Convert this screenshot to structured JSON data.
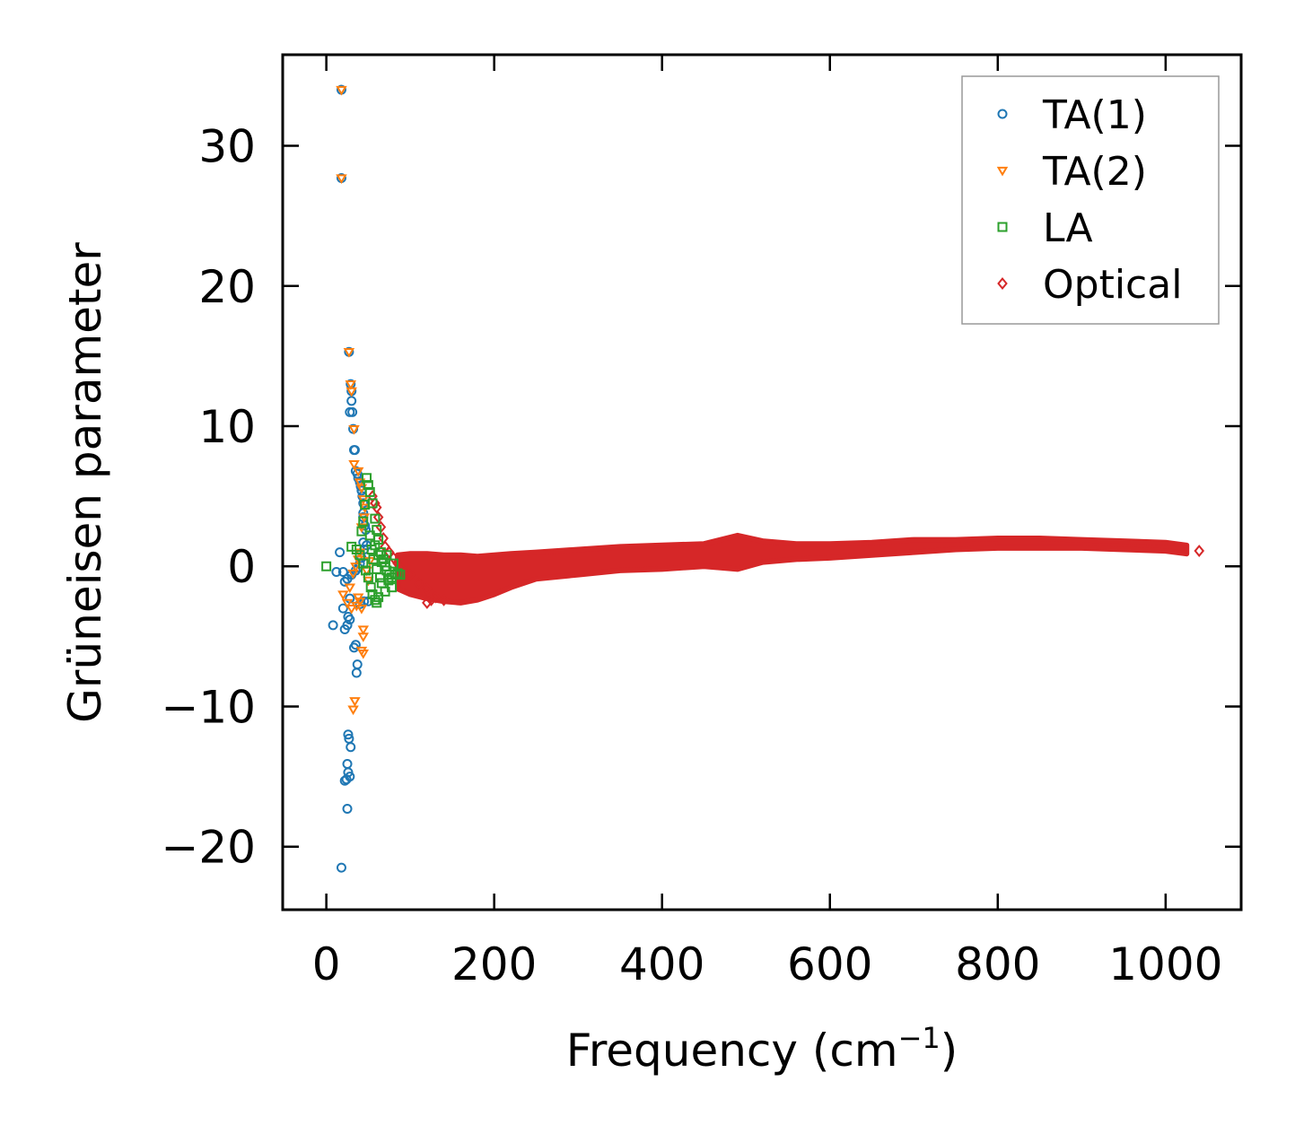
{
  "chart_data": {
    "type": "scatter",
    "title": "",
    "xlabel": "Frequency (cm",
    "xlabel_sup": "−1",
    "xlabel_suffix": ")",
    "ylabel": "Grüneisen parameter",
    "xlim": [
      -52,
      1090
    ],
    "ylim": [
      -24.5,
      36.5
    ],
    "xticks": [
      0,
      200,
      400,
      600,
      800,
      1000
    ],
    "yticks": [
      -20,
      -10,
      0,
      10,
      20,
      30
    ],
    "xtick_labels": [
      "0",
      "200",
      "400",
      "600",
      "800",
      "1000"
    ],
    "ytick_labels": [
      "−20",
      "−10",
      "0",
      "10",
      "20",
      "30"
    ],
    "legend_position": "top-right",
    "series": [
      {
        "name": "TA(1)",
        "marker": "circle",
        "color": "#1f77b4",
        "points": [
          [
            18,
            34.0
          ],
          [
            18,
            27.7
          ],
          [
            27,
            15.3
          ],
          [
            29,
            13.0
          ],
          [
            30,
            12.5
          ],
          [
            30,
            11.8
          ],
          [
            28,
            11.0
          ],
          [
            31,
            11.0
          ],
          [
            32,
            9.8
          ],
          [
            33,
            8.3
          ],
          [
            34,
            8.3
          ],
          [
            35,
            6.8
          ],
          [
            37,
            6.6
          ],
          [
            38,
            6.3
          ],
          [
            40,
            6.0
          ],
          [
            41,
            5.7
          ],
          [
            42,
            5.4
          ],
          [
            44,
            3.8
          ],
          [
            44,
            3.5
          ],
          [
            46,
            2.9
          ],
          [
            47,
            2.6
          ],
          [
            44,
            1.7
          ],
          [
            48,
            1.5
          ],
          [
            45,
            1.2
          ],
          [
            16,
            1.0
          ],
          [
            42,
            0.6
          ],
          [
            40,
            0.2
          ],
          [
            38,
            -0.1
          ],
          [
            35,
            -0.3
          ],
          [
            12,
            -0.4
          ],
          [
            20,
            -0.4
          ],
          [
            30,
            -0.6
          ],
          [
            25,
            -0.9
          ],
          [
            22,
            -1.1
          ],
          [
            45,
            -2.5
          ],
          [
            40,
            -2.7
          ],
          [
            28,
            -2.3
          ],
          [
            20,
            -3.0
          ],
          [
            26,
            -3.6
          ],
          [
            28,
            -3.8
          ],
          [
            25,
            -4.2
          ],
          [
            22,
            -4.5
          ],
          [
            8,
            -4.2
          ],
          [
            35,
            -5.6
          ],
          [
            33,
            -5.8
          ],
          [
            37,
            -7.0
          ],
          [
            36,
            -7.6
          ],
          [
            26,
            -12.0
          ],
          [
            27,
            -12.3
          ],
          [
            29,
            -12.9
          ],
          [
            25,
            -14.1
          ],
          [
            26,
            -14.7
          ],
          [
            28,
            -15.0
          ],
          [
            24,
            -15.2
          ],
          [
            22,
            -15.3
          ],
          [
            25,
            -17.3
          ],
          [
            18,
            -21.5
          ],
          [
            50,
            -2.5
          ],
          [
            44,
            4.5
          ],
          [
            43,
            5.0
          ]
        ]
      },
      {
        "name": "TA(2)",
        "marker": "triangle-down",
        "color": "#ff7f0e",
        "points": [
          [
            18,
            34.0
          ],
          [
            18,
            27.7
          ],
          [
            27,
            15.3
          ],
          [
            29,
            13.0
          ],
          [
            30,
            12.5
          ],
          [
            33,
            9.8
          ],
          [
            33,
            7.3
          ],
          [
            38,
            6.8
          ],
          [
            40,
            6.0
          ],
          [
            42,
            5.6
          ],
          [
            44,
            4.8
          ],
          [
            46,
            4.2
          ],
          [
            45,
            3.5
          ],
          [
            42,
            2.8
          ],
          [
            40,
            1.0
          ],
          [
            38,
            0.5
          ],
          [
            35,
            0.0
          ],
          [
            32,
            -0.5
          ],
          [
            28,
            -1.5
          ],
          [
            40,
            -2.5
          ],
          [
            42,
            -3.0
          ],
          [
            44,
            -4.5
          ],
          [
            44,
            -5.0
          ],
          [
            42,
            -6.0
          ],
          [
            44,
            -6.2
          ],
          [
            34,
            -9.6
          ],
          [
            32,
            -10.2
          ],
          [
            50,
            -1.0
          ],
          [
            48,
            -0.3
          ],
          [
            52,
            0.4
          ],
          [
            20,
            -2.0
          ],
          [
            25,
            -2.6
          ],
          [
            30,
            -3.0
          ],
          [
            36,
            -2.8
          ],
          [
            38,
            -2.2
          ]
        ]
      },
      {
        "name": "LA",
        "marker": "square",
        "color": "#2ca02c",
        "points": [
          [
            0,
            0.0
          ],
          [
            30,
            1.4
          ],
          [
            36,
            1.2
          ],
          [
            40,
            0.8
          ],
          [
            44,
            0.2
          ],
          [
            47,
            -0.3
          ],
          [
            50,
            -0.8
          ],
          [
            53,
            -1.5
          ],
          [
            55,
            -2.0
          ],
          [
            58,
            -2.4
          ],
          [
            60,
            -2.6
          ],
          [
            62,
            -2.2
          ],
          [
            48,
            6.3
          ],
          [
            50,
            5.8
          ],
          [
            52,
            5.3
          ],
          [
            55,
            4.5
          ],
          [
            58,
            3.4
          ],
          [
            60,
            2.6
          ],
          [
            62,
            1.9
          ],
          [
            65,
            1.0
          ],
          [
            68,
            0.5
          ],
          [
            70,
            0.0
          ],
          [
            72,
            -0.3
          ],
          [
            75,
            -0.6
          ],
          [
            78,
            -0.8
          ],
          [
            82,
            -0.6
          ],
          [
            85,
            -0.5
          ],
          [
            88,
            -0.6
          ],
          [
            66,
            -1.2
          ],
          [
            70,
            -1.8
          ],
          [
            64,
            -0.8
          ],
          [
            56,
            0.5
          ],
          [
            60,
            -0.2
          ],
          [
            54,
            1.2
          ],
          [
            52,
            2.2
          ],
          [
            46,
            4.4
          ],
          [
            44,
            3.2
          ],
          [
            42,
            2.5
          ],
          [
            58,
            1.5
          ],
          [
            62,
            0.8
          ],
          [
            66,
            0.3
          ],
          [
            72,
            0.8
          ],
          [
            74,
            -1.0
          ],
          [
            78,
            -1.5
          ],
          [
            80,
            0.2
          ]
        ]
      },
      {
        "name": "Optical",
        "marker": "diamond",
        "color": "#d62728",
        "points": [
          [
            55,
            5.0
          ],
          [
            58,
            4.5
          ],
          [
            60,
            4.2
          ],
          [
            62,
            3.5
          ],
          [
            65,
            2.8
          ],
          [
            68,
            2.0
          ],
          [
            70,
            1.4
          ],
          [
            75,
            1.0
          ],
          [
            80,
            0.6
          ],
          [
            85,
            0.2
          ],
          [
            90,
            -0.2
          ],
          [
            100,
            -0.6
          ],
          [
            110,
            -1.2
          ],
          [
            120,
            -1.6
          ],
          [
            130,
            -2.2
          ],
          [
            140,
            -2.4
          ],
          [
            120,
            -2.6
          ],
          [
            125,
            -2.4
          ],
          [
            1040,
            1.1
          ]
        ],
        "band": {
          "x": [
            85,
            100,
            120,
            140,
            160,
            180,
            200,
            220,
            250,
            300,
            350,
            400,
            450,
            490,
            520,
            560,
            600,
            650,
            700,
            750,
            800,
            850,
            900,
            950,
            1000,
            1025
          ],
          "upper": [
            0.8,
            0.9,
            0.9,
            0.8,
            0.8,
            0.7,
            0.8,
            0.9,
            1.0,
            1.2,
            1.4,
            1.5,
            1.6,
            2.2,
            1.8,
            1.6,
            1.6,
            1.7,
            1.9,
            1.9,
            2.0,
            2.0,
            1.9,
            1.8,
            1.7,
            1.5
          ],
          "lower": [
            -1.6,
            -2.0,
            -2.3,
            -2.5,
            -2.6,
            -2.4,
            -2.0,
            -1.5,
            -0.9,
            -0.6,
            -0.3,
            -0.2,
            0.0,
            -0.2,
            0.3,
            0.5,
            0.6,
            0.8,
            1.0,
            1.2,
            1.3,
            1.3,
            1.3,
            1.2,
            1.1,
            0.9
          ]
        }
      }
    ]
  }
}
